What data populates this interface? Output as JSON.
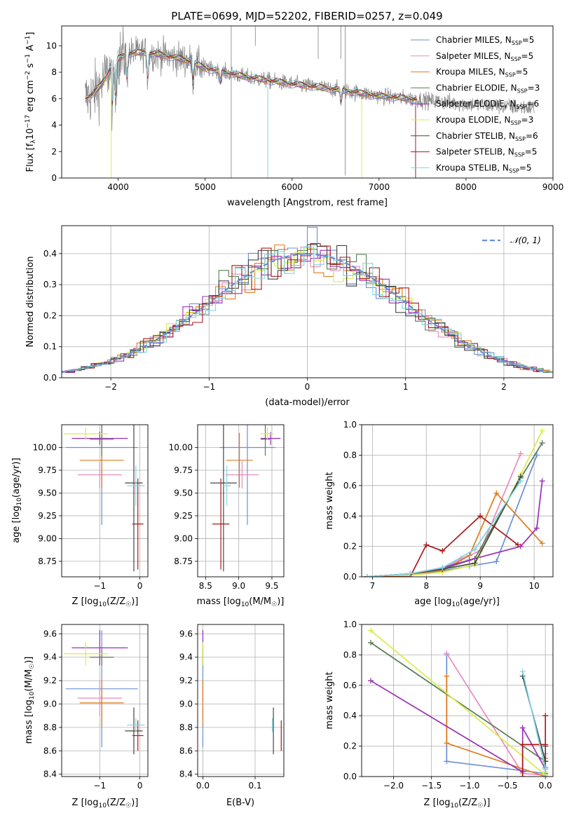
{
  "title": "PLATE=0699, MJD=52202, FIBERID=0257, z=0.049",
  "colors": {
    "Chabrier MILES": "#6a8fd6",
    "Salpeter MILES": "#e88ac0",
    "Kroupa MILES": "#e07b1c",
    "Chabrier ELODIE": "#567d56",
    "Salpeter ELODIE": "#9b30b5",
    "Kroupa ELODIE": "#d9ec4a",
    "Chabrier STELIB": "#444444",
    "Salpeter STELIB": "#a81a1a",
    "Kroupa STELIB": "#7dd6e3",
    "data": "#808080",
    "gaussian": "#6a8fd6"
  },
  "chart_data": [
    {
      "id": "spectrum",
      "type": "line",
      "title": "PLATE=0699, MJD=52202, FIBERID=0257, z=0.049",
      "xlabel": "wavelength [Angstrom, rest frame]",
      "ylabel": "Flux [f_λ 10^-17 erg cm^-2 s^-1 A^-1]",
      "xlim": [
        3350,
        9000
      ],
      "ylim": [
        0,
        11.5
      ],
      "xticks": [
        4000,
        5000,
        6000,
        7000,
        8000,
        9000
      ],
      "yticks": [
        0,
        2,
        4,
        6,
        8,
        10
      ],
      "legend": "top-right",
      "legend_entries": [
        {
          "name": "Chabrier MILES",
          "nssp": "5"
        },
        {
          "name": "Salpeter MILES",
          "nssp": "5"
        },
        {
          "name": "Kroupa MILES",
          "nssp": "5"
        },
        {
          "name": "Chabrier ELODIE",
          "nssp": "3"
        },
        {
          "name": "Salpeter ELODIE",
          "nssp": "6"
        },
        {
          "name": "Kroupa ELODIE",
          "nssp": "3"
        },
        {
          "name": "Chabrier STELIB",
          "nssp": "6"
        },
        {
          "name": "Salpeter STELIB",
          "nssp": "5"
        },
        {
          "name": "Kroupa STELIB",
          "nssp": "5"
        }
      ],
      "continuum": {
        "x": [
          3620,
          3700,
          3800,
          3900,
          4000,
          4100,
          4300,
          4500,
          4800,
          5000,
          5500,
          6000,
          6500,
          7000,
          7500,
          8000,
          8500,
          8800
        ],
        "y": [
          6.0,
          6.3,
          7.0,
          8.2,
          9.0,
          9.4,
          9.5,
          9.3,
          8.9,
          8.3,
          7.6,
          7.1,
          6.7,
          6.2,
          5.9,
          5.6,
          5.4,
          5.3
        ]
      }
    },
    {
      "id": "residuals",
      "type": "line",
      "xlabel": "(data-model)/error",
      "ylabel": "Normed distribution",
      "xlim": [
        -2.5,
        2.5
      ],
      "ylim": [
        0,
        0.49
      ],
      "xticks": [
        -2,
        -1,
        0,
        1,
        2
      ],
      "yticks": [
        0.0,
        0.1,
        0.2,
        0.3,
        0.4
      ],
      "legend": "top-right",
      "legend_label": "𝒩(0, 1)",
      "bin_width": 0.1
    },
    {
      "id": "age-vs-Z",
      "type": "scatter",
      "xlabel": "Z [log10(Z/Z☉)]",
      "ylabel": "age  [log10(age/yr)]",
      "xlim": [
        -1.95,
        0.2
      ],
      "ylim": [
        8.58,
        10.25
      ],
      "xticks": [
        -1,
        0
      ],
      "yticks": [
        8.75,
        9.0,
        9.25,
        9.5,
        9.75,
        10.0
      ],
      "points": [
        {
          "model": "Chabrier MILES",
          "x": -0.95,
          "xerr": 0.9,
          "y": 10.0,
          "yerr": 0.85
        },
        {
          "model": "Salpeter MILES",
          "x": -1.0,
          "xerr": 0.55,
          "y": 9.7,
          "yerr": 0.15
        },
        {
          "model": "Kroupa MILES",
          "x": -0.95,
          "xerr": 0.55,
          "y": 9.86,
          "yerr": 0.3
        },
        {
          "model": "Chabrier ELODIE",
          "x": -0.95,
          "xerr": 0.3,
          "y": 10.09,
          "yerr": 0.18
        },
        {
          "model": "Salpeter ELODIE",
          "x": -1.0,
          "xerr": 0.7,
          "y": 10.1,
          "yerr": 0.07
        },
        {
          "model": "Kroupa ELODIE",
          "x": -1.35,
          "xerr": 0.55,
          "y": 10.15,
          "yerr": 0.07
        },
        {
          "model": "Chabrier STELIB",
          "x": -0.15,
          "xerr": 0.22,
          "y": 9.61,
          "yerr": 0.97
        },
        {
          "model": "Salpeter STELIB",
          "x": -0.05,
          "xerr": 0.14,
          "y": 9.16,
          "yerr": 0.5
        },
        {
          "model": "Kroupa STELIB",
          "x": -0.1,
          "xerr": 0.22,
          "y": 9.58,
          "yerr": 0.22
        }
      ]
    },
    {
      "id": "age-vs-mass",
      "type": "scatter",
      "xlabel": "mass [log10(M/M☉)]",
      "ylabel": "",
      "xlim": [
        8.38,
        9.68
      ],
      "ylim": [
        8.58,
        10.25
      ],
      "xticks": [
        8.5,
        9.0,
        9.5
      ],
      "yticks": [
        8.75,
        9.0,
        9.25,
        9.5,
        9.75,
        10.0
      ],
      "points": [
        {
          "model": "Chabrier MILES",
          "x": 9.13,
          "xerr": 0.42,
          "y": 10.0,
          "yerr": 0.85
        },
        {
          "model": "Salpeter MILES",
          "x": 9.05,
          "xerr": 0.25,
          "y": 9.7,
          "yerr": 0.15
        },
        {
          "model": "Kroupa MILES",
          "x": 9.01,
          "xerr": 0.2,
          "y": 9.86,
          "yerr": 0.3
        },
        {
          "model": "Chabrier ELODIE",
          "x": 9.4,
          "xerr": 0.07,
          "y": 10.09,
          "yerr": 0.18
        },
        {
          "model": "Salpeter ELODIE",
          "x": 9.48,
          "xerr": 0.15,
          "y": 10.1,
          "yerr": 0.07
        },
        {
          "model": "Kroupa ELODIE",
          "x": 9.43,
          "xerr": 0.1,
          "y": 10.15,
          "yerr": 0.07
        },
        {
          "model": "Chabrier STELIB",
          "x": 8.77,
          "xerr": 0.2,
          "y": 9.61,
          "yerr": 0.97
        },
        {
          "model": "Salpeter STELIB",
          "x": 8.73,
          "xerr": 0.13,
          "y": 9.16,
          "yerr": 0.5
        },
        {
          "model": "Kroupa STELIB",
          "x": 8.82,
          "xerr": 0.06,
          "y": 9.58,
          "yerr": 0.22
        }
      ]
    },
    {
      "id": "weight-vs-age",
      "type": "line",
      "xlabel": "age  [log10(age/yr)]",
      "ylabel": "mass weight",
      "xlim": [
        6.8,
        10.35
      ],
      "ylim": [
        0,
        1.0
      ],
      "xticks": [
        7,
        8,
        9,
        10
      ],
      "yticks": [
        0.0,
        0.2,
        0.4,
        0.6,
        0.8,
        1.0
      ],
      "series": [
        {
          "model": "Chabrier MILES",
          "x": [
            6.9,
            7.7,
            8.3,
            8.8,
            9.3,
            10.05
          ],
          "y": [
            0.0,
            0.01,
            0.04,
            0.07,
            0.1,
            0.8
          ]
        },
        {
          "model": "Salpeter MILES",
          "x": [
            6.9,
            7.7,
            8.3,
            8.65,
            9.0,
            9.75
          ],
          "y": [
            0.0,
            0.01,
            0.05,
            0.12,
            0.17,
            0.81
          ]
        },
        {
          "model": "Kroupa MILES",
          "x": [
            6.9,
            7.7,
            8.3,
            8.8,
            9.3,
            10.15
          ],
          "y": [
            0.0,
            0.02,
            0.04,
            0.14,
            0.55,
            0.22
          ]
        },
        {
          "model": "Chabrier ELODIE",
          "x": [
            6.9,
            7.7,
            8.3,
            8.9,
            9.75,
            10.15
          ],
          "y": [
            0.0,
            0.02,
            0.05,
            0.12,
            0.65,
            0.88
          ]
        },
        {
          "model": "Salpeter ELODIE",
          "x": [
            6.9,
            7.7,
            8.3,
            8.8,
            9.75,
            10.05,
            10.15
          ],
          "y": [
            0.0,
            0.02,
            0.06,
            0.11,
            0.2,
            0.32,
            0.63
          ]
        },
        {
          "model": "Kroupa ELODIE",
          "x": [
            6.9,
            7.7,
            8.3,
            8.9,
            9.75,
            10.15
          ],
          "y": [
            0.0,
            0.01,
            0.03,
            0.08,
            0.67,
            0.96
          ]
        },
        {
          "model": "Chabrier STELIB",
          "x": [
            6.9,
            7.7,
            8.3,
            8.9,
            9.75
          ],
          "y": [
            0.0,
            0.02,
            0.05,
            0.09,
            0.66
          ]
        },
        {
          "model": "Salpeter STELIB",
          "x": [
            6.9,
            7.7,
            8.0,
            8.3,
            9.0,
            9.7
          ],
          "y": [
            0.0,
            0.0,
            0.21,
            0.17,
            0.4,
            0.21
          ]
        },
        {
          "model": "Kroupa STELIB",
          "x": [
            6.9,
            7.7,
            8.3,
            8.9,
            9.75
          ],
          "y": [
            0.0,
            0.02,
            0.06,
            0.18,
            0.63
          ]
        }
      ]
    },
    {
      "id": "mass-vs-Z",
      "type": "scatter",
      "xlabel": "Z [log10(Z/Z☉)]",
      "ylabel": "mass [log10(M/M☉)]",
      "xlim": [
        -1.95,
        0.2
      ],
      "ylim": [
        8.38,
        9.68
      ],
      "xticks": [
        -1,
        0
      ],
      "yticks": [
        8.4,
        8.6,
        8.8,
        9.0,
        9.2,
        9.4,
        9.6
      ],
      "points": [
        {
          "model": "Chabrier MILES",
          "x": -0.95,
          "xerr": 0.9,
          "y": 9.13,
          "yerr": 0.5
        },
        {
          "model": "Salpeter MILES",
          "x": -1.0,
          "xerr": 0.55,
          "y": 9.05,
          "yerr": 0.15
        },
        {
          "model": "Kroupa MILES",
          "x": -0.95,
          "xerr": 0.55,
          "y": 9.01,
          "yerr": 0.2
        },
        {
          "model": "Chabrier ELODIE",
          "x": -0.95,
          "xerr": 0.3,
          "y": 9.4,
          "yerr": 0.07
        },
        {
          "model": "Salpeter ELODIE",
          "x": -1.0,
          "xerr": 0.7,
          "y": 9.48,
          "yerr": 0.15
        },
        {
          "model": "Kroupa ELODIE",
          "x": -1.35,
          "xerr": 0.55,
          "y": 9.43,
          "yerr": 0.1
        },
        {
          "model": "Chabrier STELIB",
          "x": -0.15,
          "xerr": 0.22,
          "y": 8.77,
          "yerr": 0.2
        },
        {
          "model": "Salpeter STELIB",
          "x": -0.05,
          "xerr": 0.14,
          "y": 8.73,
          "yerr": 0.13
        },
        {
          "model": "Kroupa STELIB",
          "x": -0.1,
          "xerr": 0.22,
          "y": 8.82,
          "yerr": 0.06
        }
      ]
    },
    {
      "id": "mass-vs-ebv",
      "type": "scatter",
      "xlabel": "E(B-V)",
      "ylabel": "",
      "xlim": [
        -0.01,
        0.155
      ],
      "ylim": [
        8.38,
        9.68
      ],
      "xticks": [
        0.0,
        0.1
      ],
      "yticks": [
        8.4,
        8.6,
        8.8,
        9.0,
        9.2,
        9.4,
        9.6
      ],
      "points": [
        {
          "model": "Chabrier MILES",
          "x": 0.0,
          "y": 9.13,
          "yerr": 0.5
        },
        {
          "model": "Salpeter MILES",
          "x": 0.0,
          "y": 9.05,
          "yerr": 0.15
        },
        {
          "model": "Kroupa MILES",
          "x": 0.0,
          "y": 9.01,
          "yerr": 0.2
        },
        {
          "model": "Chabrier ELODIE",
          "x": 0.0,
          "y": 9.4,
          "yerr": 0.07
        },
        {
          "model": "Salpeter ELODIE",
          "x": 0.0,
          "y": 9.48,
          "yerr": 0.15
        },
        {
          "model": "Kroupa ELODIE",
          "x": 0.0,
          "y": 9.43,
          "yerr": 0.1
        },
        {
          "model": "Chabrier STELIB",
          "x": 0.135,
          "y": 8.77,
          "yerr": 0.2
        },
        {
          "model": "Salpeter STELIB",
          "x": 0.15,
          "y": 8.73,
          "yerr": 0.13
        },
        {
          "model": "Kroupa STELIB",
          "x": 0.133,
          "y": 8.82,
          "yerr": 0.06
        }
      ]
    },
    {
      "id": "weight-vs-Z",
      "type": "line",
      "xlabel": "Z [log10(Z/Z☉)]",
      "ylabel": "mass weight",
      "xlim": [
        -2.42,
        0.1
      ],
      "ylim": [
        0,
        1.0
      ],
      "xticks": [
        -2.0,
        -1.5,
        -1.0,
        -0.5,
        0.0
      ],
      "yticks": [
        0.0,
        0.2,
        0.4,
        0.6,
        0.8,
        1.0
      ],
      "series": [
        {
          "model": "Chabrier MILES",
          "x": [
            -1.3,
            -1.3,
            0.0,
            0.0
          ],
          "y": [
            0.8,
            0.1,
            0.02,
            0.06
          ]
        },
        {
          "model": "Salpeter MILES",
          "x": [
            -1.3,
            -0.3,
            0.0,
            0.0
          ],
          "y": [
            0.81,
            0.02,
            0.01,
            0.15
          ]
        },
        {
          "model": "Kroupa MILES",
          "x": [
            -1.3,
            -1.3,
            0.0,
            0.0
          ],
          "y": [
            0.66,
            0.22,
            0.0,
            0.12
          ]
        },
        {
          "model": "Chabrier ELODIE",
          "x": [
            -2.3,
            0.0,
            0.0
          ],
          "y": [
            0.88,
            0.1,
            0.02
          ]
        },
        {
          "model": "Salpeter ELODIE",
          "x": [
            -2.3,
            -0.3,
            -0.3,
            0.0,
            0.0
          ],
          "y": [
            0.63,
            0.03,
            0.32,
            0.05,
            0.0
          ]
        },
        {
          "model": "Kroupa ELODIE",
          "x": [
            -2.3,
            0.0,
            0.0
          ],
          "y": [
            0.96,
            0.01,
            0.03
          ]
        },
        {
          "model": "Chabrier STELIB",
          "x": [
            -0.3,
            0.0,
            0.0
          ],
          "y": [
            0.66,
            0.1,
            0.2
          ]
        },
        {
          "model": "Salpeter STELIB",
          "x": [
            -0.3,
            -0.3,
            0.0,
            0.0
          ],
          "y": [
            0.0,
            0.21,
            0.21,
            0.4
          ]
        },
        {
          "model": "Kroupa STELIB",
          "x": [
            -0.3,
            0.0,
            0.0
          ],
          "y": [
            0.69,
            0.05,
            0.0
          ]
        }
      ]
    }
  ]
}
